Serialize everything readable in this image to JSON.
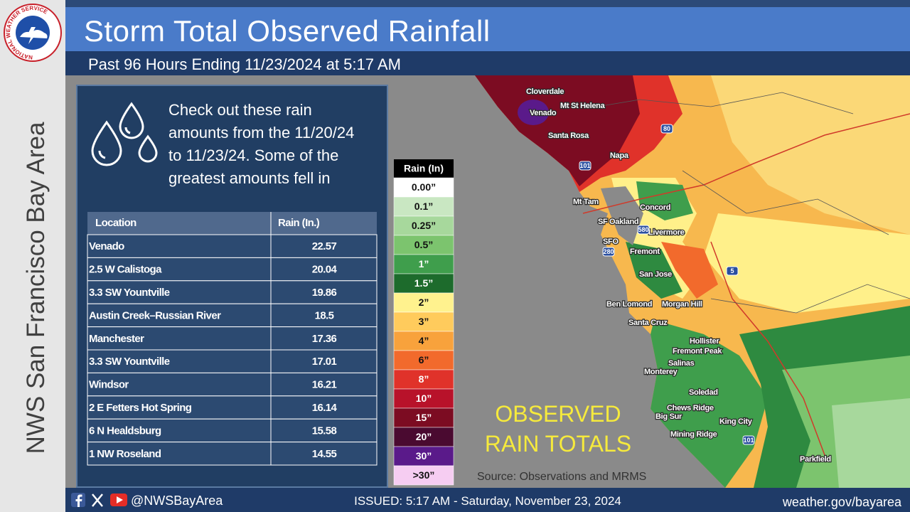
{
  "sidebar": {
    "logo_ring": "NATIONAL WEATHER SERVICE",
    "office": "NWS San Francisco Bay Area"
  },
  "header": {
    "title": "Storm Total Observed Rainfall",
    "subtitle": "Past 96 Hours Ending 11/23/2024 at 5:17 AM"
  },
  "intro_lines": [
    "Check out these rain",
    "amounts from the 11/20/24",
    "to 11/23/24. Some of the",
    "greatest amounts fell in"
  ],
  "table": {
    "header": [
      "Location",
      "Rain (In.)"
    ],
    "rows": [
      [
        "Venado",
        "22.57"
      ],
      [
        "2.5 W Calistoga",
        "20.04"
      ],
      [
        "3.3 SW Yountville",
        "19.86"
      ],
      [
        "Austin Creek–Russian River",
        "18.5"
      ],
      [
        "Manchester",
        "17.36"
      ],
      [
        "3.3 SW Yountville",
        "17.01"
      ],
      [
        "Windsor",
        "16.21"
      ],
      [
        "2 E Fetters Hot Spring",
        "16.14"
      ],
      [
        "6 N Healdsburg",
        "15.58"
      ],
      [
        "1 NW Roseland",
        "14.55"
      ]
    ]
  },
  "legend": {
    "title": "Rain  (In)",
    "items": [
      {
        "label": "0.00”",
        "color": "#ffffff"
      },
      {
        "label": "0.1”",
        "color": "#c9e7c2"
      },
      {
        "label": "0.25”",
        "color": "#a7d89c"
      },
      {
        "label": "0.5”",
        "color": "#7cc46e"
      },
      {
        "label": "1”",
        "color": "#3f9e4c"
      },
      {
        "label": "1.5”",
        "color": "#1d6b2c"
      },
      {
        "label": "2”",
        "color": "#fff28e"
      },
      {
        "label": "3”",
        "color": "#ffcb5c"
      },
      {
        "label": "4”",
        "color": "#f8a23c"
      },
      {
        "label": "6”",
        "color": "#f26a2c"
      },
      {
        "label": "8”",
        "color": "#e0322a"
      },
      {
        "label": "10”",
        "color": "#b8122a"
      },
      {
        "label": "15”",
        "color": "#7c0c22"
      },
      {
        "label": "20”",
        "color": "#4a0a30"
      },
      {
        "label": "30”",
        "color": "#5a1a8a"
      },
      {
        "label": ">30”",
        "color": "#f6cdf2"
      }
    ]
  },
  "map": {
    "places": [
      "Cloverdale",
      "Venado",
      "Mt St Helena",
      "Santa Rosa",
      "Napa",
      "Mt Tam",
      "SF",
      "Oakland",
      "Concord",
      "Livermore",
      "SFO",
      "Fremont",
      "San Jose",
      "Ben Lomond",
      "Morgan Hill",
      "Santa Cruz",
      "Hollister",
      "Fremont Peak",
      "Salinas",
      "Monterey",
      "Soledad",
      "Chews Ridge",
      "Big Sur",
      "King City",
      "Mining Ridge",
      "Parkfield"
    ],
    "shields": [
      "80",
      "101",
      "580",
      "280",
      "5",
      "101"
    ],
    "overlay_lines": [
      "OBSERVED",
      "RAIN TOTALS"
    ],
    "source": "Source: Observations and MRMS"
  },
  "footer": {
    "handle": "@NWSBayArea",
    "issued": "ISSUED: 5:17 AM - Saturday, November 23, 2024",
    "website": "weather.gov/bayarea"
  }
}
